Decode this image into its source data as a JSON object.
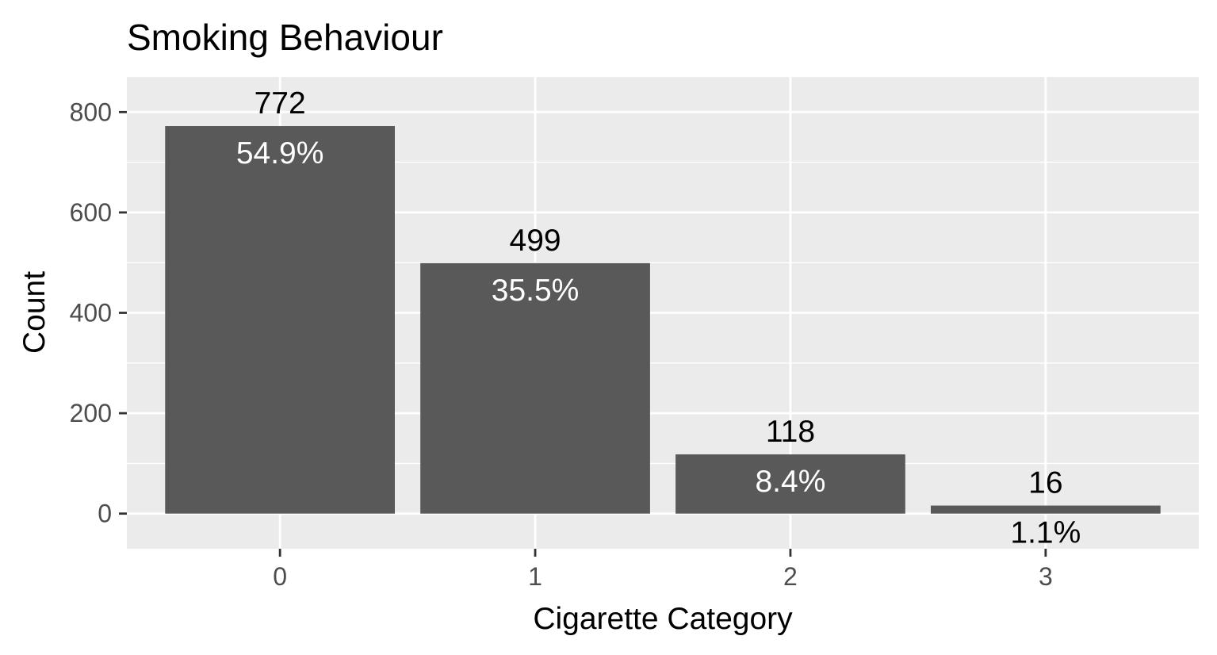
{
  "chart_data": {
    "type": "bar",
    "title": "Smoking Behaviour",
    "xlabel": "Cigarette Category",
    "ylabel": "Count",
    "categories": [
      "0",
      "1",
      "2",
      "3"
    ],
    "values": [
      772,
      499,
      118,
      16
    ],
    "percent_labels": [
      "54.9%",
      "35.5%",
      "8.4%",
      "1.1%"
    ],
    "count_labels": [
      "772",
      "499",
      "118",
      "16"
    ],
    "yticks": [
      0,
      200,
      400,
      600,
      800
    ],
    "ytick_labels": [
      "0",
      "200",
      "400",
      "600",
      "800"
    ],
    "ylim": [
      -70,
      870
    ],
    "grid": true,
    "colors": {
      "bar": "#595959",
      "panel_background": "#ebebeb",
      "grid": "#ffffff",
      "percent_label_inside": "#ffffff",
      "percent_label_outside": "#000000"
    }
  }
}
